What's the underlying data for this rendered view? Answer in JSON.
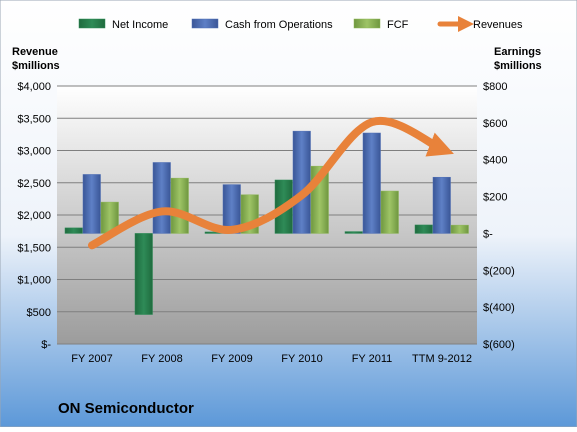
{
  "chart_data": {
    "type": "bar",
    "title": "ON Semiconductor",
    "left_axis_label": [
      "Revenue",
      "$millions"
    ],
    "right_axis_label": [
      "Earnings",
      "$millions"
    ],
    "categories": [
      "FY 2007",
      "FY 2008",
      "FY 2009",
      "FY 2010",
      "FY 2011",
      "TTM 9-2012"
    ],
    "left_axis": {
      "min": 0,
      "max": 4000,
      "step": 500,
      "tick_labels": [
        "$-",
        "$500",
        "$1,000",
        "$1,500",
        "$2,000",
        "$2,500",
        "$3,000",
        "$3,500",
        "$4,000"
      ]
    },
    "right_axis": {
      "min": -600,
      "max": 800,
      "step": 200,
      "tick_labels": [
        "$(600)",
        "$(400)",
        "$(200)",
        "$-",
        "$200",
        "$400",
        "$600",
        "$800"
      ]
    },
    "series": [
      {
        "name": "Net Income",
        "type": "bar",
        "axis": "right",
        "color": "#2E8B57",
        "values": [
          30,
          -440,
          8,
          290,
          10,
          46
        ]
      },
      {
        "name": "Cash from Operations",
        "type": "bar",
        "axis": "right",
        "color": "#4F6FB5",
        "values": [
          320,
          385,
          265,
          555,
          545,
          305
        ]
      },
      {
        "name": "FCF",
        "type": "bar",
        "axis": "right",
        "color": "#8DB556",
        "values": [
          170,
          300,
          210,
          365,
          230,
          45
        ]
      },
      {
        "name": "Revenues",
        "type": "line",
        "axis": "left",
        "color": "#E8823A",
        "values": [
          1530,
          2055,
          1770,
          2310,
          3440,
          3020
        ]
      }
    ],
    "legend_position": "top",
    "grid": true
  }
}
